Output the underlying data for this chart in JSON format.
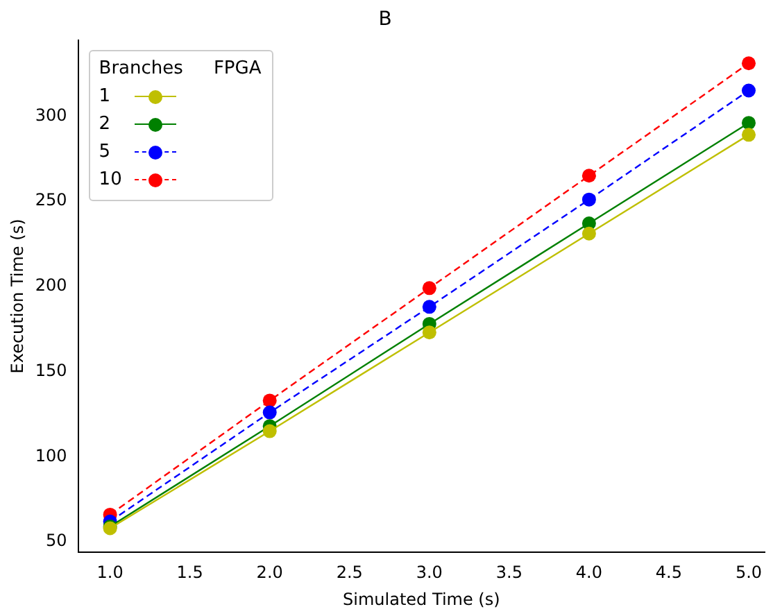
{
  "chart_data": {
    "type": "line",
    "title": "B",
    "xlabel": "Simulated Time (s)",
    "ylabel": "Execution Time (s)",
    "legend_title": "Branches",
    "annotations": [
      "FPGA"
    ],
    "x": [
      1,
      2,
      3,
      4,
      5
    ],
    "series": [
      {
        "name": "1",
        "color": "#bfbf00",
        "line_style": "solid",
        "values": [
          58,
          115,
          173,
          231,
          289
        ]
      },
      {
        "name": "2",
        "color": "#008000",
        "line_style": "solid",
        "values": [
          59,
          118,
          178,
          237,
          296
        ]
      },
      {
        "name": "5",
        "color": "#0000ff",
        "line_style": "dashed",
        "values": [
          62,
          126,
          188,
          251,
          315
        ]
      },
      {
        "name": "10",
        "color": "#ff0000",
        "line_style": "dashed",
        "values": [
          66,
          133,
          199,
          265,
          331
        ]
      }
    ],
    "xlim": [
      0.8,
      5.1
    ],
    "xticks": [
      {
        "value": 1,
        "label": "1.0"
      },
      {
        "value": 1.5,
        "label": "1.5"
      },
      {
        "value": 2,
        "label": "2.0"
      },
      {
        "value": 2.5,
        "label": "2.5"
      },
      {
        "value": 3,
        "label": "3.0"
      },
      {
        "value": 3.5,
        "label": "3.5"
      },
      {
        "value": 4,
        "label": "4.0"
      },
      {
        "value": 4.5,
        "label": "4.5"
      },
      {
        "value": 5,
        "label": "5.0"
      }
    ],
    "ylim": [
      43.8,
      344.7
    ],
    "yticks": [
      50,
      100,
      150,
      200,
      250,
      300
    ],
    "grid": false,
    "legend": "top left",
    "marker": "circle"
  }
}
